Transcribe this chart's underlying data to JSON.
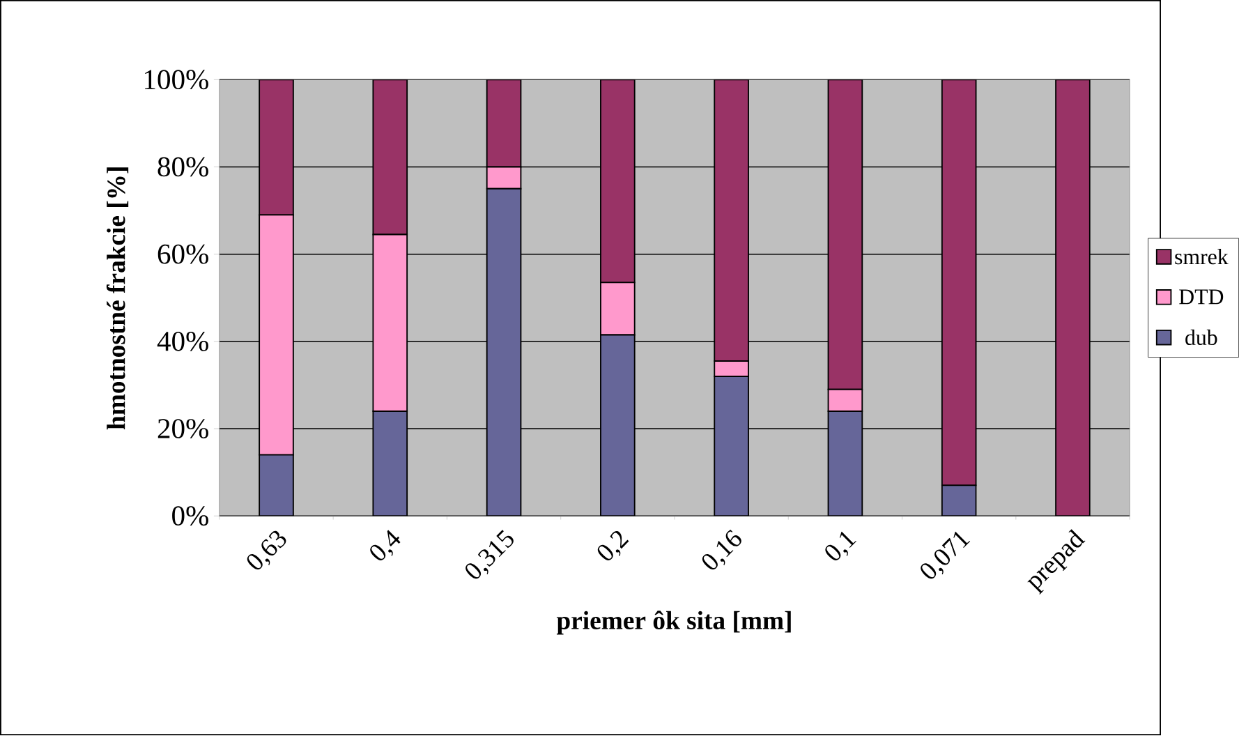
{
  "chart_data": {
    "type": "bar",
    "stacked": true,
    "xlabel": "priemer ôk sita [mm]",
    "ylabel": "hmotnostné frakcie [%]",
    "categories": [
      "0,63",
      "0,4",
      "0,315",
      "0,2",
      "0,16",
      "0,1",
      "0,071",
      "prepad"
    ],
    "series": [
      {
        "name": "dub",
        "color": "#666699",
        "values": [
          14,
          24,
          75,
          41.5,
          32,
          24,
          7,
          0
        ]
      },
      {
        "name": "DTD",
        "color": "#ff99cc",
        "values": [
          55,
          40.5,
          5,
          12,
          3.5,
          5,
          0,
          0
        ]
      },
      {
        "name": "smrek",
        "color": "#993366",
        "values": [
          31,
          35.5,
          20,
          46.5,
          64.5,
          71,
          93,
          100
        ]
      }
    ],
    "ylim": [
      0,
      100
    ],
    "yticks": [
      {
        "value": 0,
        "label": "0%"
      },
      {
        "value": 20,
        "label": "20%"
      },
      {
        "value": 40,
        "label": "40%"
      },
      {
        "value": 60,
        "label": "60%"
      },
      {
        "value": 80,
        "label": "80%"
      },
      {
        "value": 100,
        "label": "100%"
      }
    ],
    "grid": "y",
    "legend": "right"
  }
}
